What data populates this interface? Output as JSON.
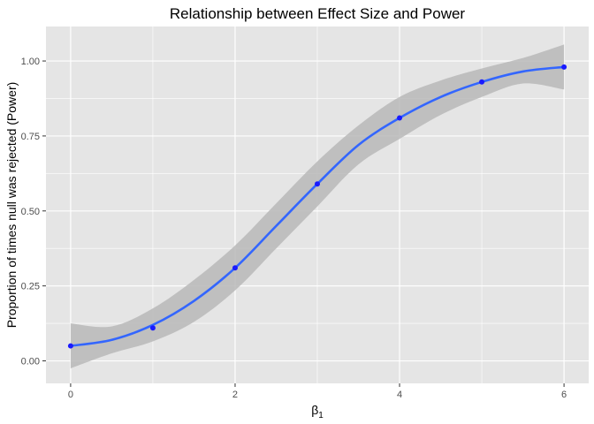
{
  "chart_data": {
    "type": "scatter",
    "title": "Relationship between Effect Size and Power",
    "xlabel": "β",
    "xlabel_subscript": "1",
    "ylabel": "Proportion of times null was rejected (Power)",
    "xlim": [
      -0.3,
      6.3
    ],
    "ylim": [
      -0.075,
      1.115
    ],
    "x_ticks": [
      0,
      2,
      4,
      6
    ],
    "y_ticks": [
      0.0,
      0.25,
      0.5,
      0.75,
      1.0
    ],
    "x_tick_labels": [
      "0",
      "2",
      "4",
      "6"
    ],
    "y_tick_labels": [
      "0.00",
      "0.25",
      "0.50",
      "0.75",
      "1.00"
    ],
    "grid": true,
    "legend": "none",
    "colors": {
      "panel": "#e5e5e5",
      "grid": "#ffffff",
      "points": "#1a1aff",
      "smooth_line": "#3366ff",
      "ribbon": "#b8b8b8"
    },
    "series": [
      {
        "kind": "points",
        "x": [
          0,
          1,
          2,
          3,
          4,
          5,
          6
        ],
        "y": [
          0.05,
          0.11,
          0.31,
          0.59,
          0.81,
          0.93,
          0.98
        ]
      },
      {
        "kind": "smooth",
        "x": [
          0,
          0.5,
          1,
          1.5,
          2,
          2.5,
          3,
          3.5,
          4,
          4.5,
          5,
          5.5,
          6
        ],
        "y": [
          0.05,
          0.07,
          0.12,
          0.2,
          0.31,
          0.45,
          0.59,
          0.72,
          0.81,
          0.88,
          0.93,
          0.965,
          0.98
        ],
        "lower": [
          -0.025,
          0.025,
          0.065,
          0.13,
          0.235,
          0.375,
          0.515,
          0.655,
          0.74,
          0.82,
          0.88,
          0.925,
          0.905
        ],
        "upper": [
          0.125,
          0.115,
          0.175,
          0.27,
          0.385,
          0.525,
          0.665,
          0.785,
          0.88,
          0.935,
          0.975,
          1.01,
          1.055
        ]
      }
    ]
  }
}
